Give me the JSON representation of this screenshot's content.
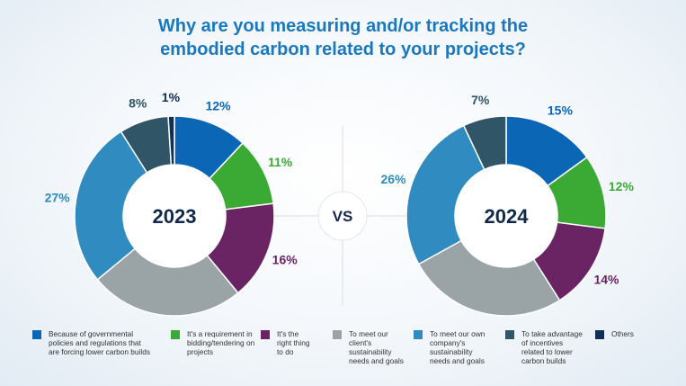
{
  "title_lines": [
    "Why are you measuring and/or tracking the",
    "embodied carbon related to your projects?"
  ],
  "vs_label": "VS",
  "colors": [
    "#0b66b6",
    "#3aaa35",
    "#6a2463",
    "#9aa3a6",
    "#2f8bc0",
    "#2f5567",
    "#0f2f57"
  ],
  "chart_data": [
    {
      "type": "pie",
      "center_label": "2023",
      "categories": [
        "Because of governmental policies and regulations that are forcing lower carbon builds",
        "It's a requirement in bidding/tendering on projects",
        "It's the right thing to do",
        "To meet our client's sustainability needs and goals",
        "To meet our own company's sustainability needs and goals",
        "To take advantage of incentives related to lower carbon builds",
        "Others"
      ],
      "values": [
        12,
        11,
        16,
        25,
        27,
        8,
        1
      ],
      "labels": [
        "12%",
        "11%",
        "16%",
        "25%",
        "27%",
        "8%",
        "1%"
      ]
    },
    {
      "type": "pie",
      "center_label": "2024",
      "categories": [
        "Because of governmental policies and regulations that are forcing lower carbon builds",
        "It's a requirement in bidding/tendering on projects",
        "It's the right thing to do",
        "To meet our client's sustainability needs and goals",
        "To meet our own company's sustainability needs and goals",
        "To take advantage of incentives related to lower carbon builds",
        "Others"
      ],
      "values": [
        15,
        12,
        14,
        26,
        26,
        7,
        0
      ],
      "labels": [
        "15%",
        "12%",
        "14%",
        "26%",
        "26%",
        "7%",
        ""
      ]
    }
  ],
  "legend": [
    {
      "lines": [
        "Because of governmental",
        "policies and regulations that",
        "are forcing lower carbon builds"
      ]
    },
    {
      "lines": [
        "It's a requirement in",
        "bidding/tendering on",
        "projects"
      ]
    },
    {
      "lines": [
        "It's the",
        "right thing",
        "to do"
      ]
    },
    {
      "lines": [
        "To meet our",
        "client's",
        "sustainability",
        "needs and goals"
      ]
    },
    {
      "lines": [
        "To meet our own",
        "company's",
        "sustainability",
        "needs and goals"
      ]
    },
    {
      "lines": [
        "To take advantage",
        "of incentives",
        "related to lower",
        "carbon builds"
      ]
    },
    {
      "lines": [
        "Others"
      ]
    }
  ]
}
